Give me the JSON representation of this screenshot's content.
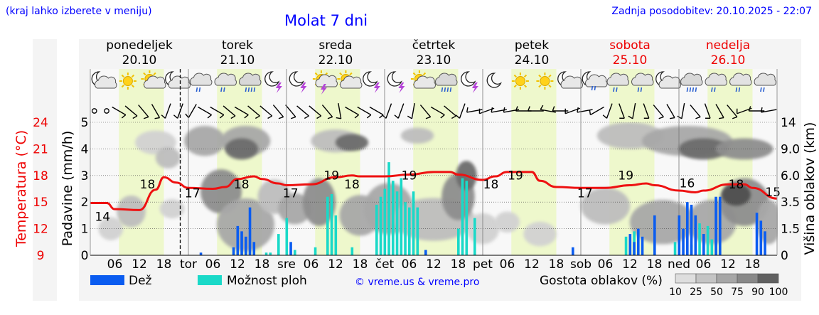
{
  "header": {
    "hint": "(kraj lahko izberete v meniju)",
    "title": "Molat 7 dni",
    "updated": "Zadnja posodobitev: 20.10.2025 - 22:07"
  },
  "days": [
    {
      "name": "ponedeljek",
      "date": "20.10",
      "weekend": false,
      "short": ""
    },
    {
      "name": "torek",
      "date": "21.10",
      "weekend": false,
      "short": "tor"
    },
    {
      "name": "sreda",
      "date": "22.10",
      "weekend": false,
      "short": "sre"
    },
    {
      "name": "četrtek",
      "date": "23.10",
      "weekend": false,
      "short": "čet"
    },
    {
      "name": "petek",
      "date": "24.10",
      "weekend": false,
      "short": "pet"
    },
    {
      "name": "sobota",
      "date": "25.10",
      "weekend": true,
      "short": "sob"
    },
    {
      "name": "nedelja",
      "date": "26.10",
      "weekend": true,
      "short": "ned"
    }
  ],
  "legend": {
    "rain": "Dež",
    "showers": "Možnost ploh",
    "credit": "© vreme.us & vreme.pro",
    "cloud_density": "Gostota oblakov (%)",
    "cloud_levels": [
      "10",
      "25",
      "50",
      "75",
      "90",
      "100"
    ]
  },
  "colors": {
    "rain": "#0a5cf0",
    "showers": "#1ad9c8",
    "temperature": "#ee1111",
    "daytime": "#eef8cc",
    "blue_text": "#0000ff",
    "red_text": "#ee0000"
  },
  "weather_icons": [
    "moon-cloud",
    "sun",
    "sun-cloud",
    "moon-cloud",
    "cloud-rain",
    "cloud-rain",
    "cloud-heavy-rain",
    "moon-storm",
    "moon-storm",
    "sun-storm",
    "sun-cloud",
    "moon-storm",
    "moon-storm",
    "sun-cloud",
    "cloud-heavy-rain",
    "moon-storm",
    "moon",
    "sun",
    "sun",
    "moon-cloud",
    "moon-cloud-rain",
    "cloud-rain",
    "cloud-rain",
    "moon-cloud",
    "cloud-heavy-rain",
    "cloud-rain",
    "cloud-rain",
    "cloud-rain"
  ],
  "chart_data": {
    "type": "meteogram",
    "x_hour_labels": [
      "06",
      "12",
      "18"
    ],
    "y_left_precip": {
      "label": "Padavine (mm/h)",
      "ticks": [
        "0",
        "1",
        "2",
        "3",
        "4",
        "5"
      ],
      "range": [
        0,
        5
      ]
    },
    "y_left_temp": {
      "label": "Temperatura (°C)",
      "ticks": [
        "9",
        "12",
        "15",
        "18",
        "21",
        "24"
      ],
      "range": [
        9,
        24
      ]
    },
    "y_right_cloud": {
      "label": "Višina oblakov (km)",
      "ticks": [
        "0",
        "1.5",
        "3.5",
        "6.0",
        "9.0",
        "14"
      ]
    },
    "temperature": {
      "hours": [
        0,
        4,
        6,
        12,
        16,
        18,
        21,
        24,
        30,
        33,
        36,
        40,
        42,
        46,
        48,
        54,
        60,
        64,
        66,
        72,
        78,
        84,
        88,
        90,
        96,
        99,
        102,
        108,
        110,
        114,
        120,
        126,
        132,
        136,
        138,
        144,
        148,
        150,
        156,
        160,
        162,
        168
      ],
      "values": [
        14.9,
        14.9,
        14.2,
        14.1,
        16.4,
        17.8,
        17.2,
        16.6,
        16.5,
        16.7,
        17.6,
        17.9,
        17.6,
        17.1,
        16.9,
        17.0,
        17.8,
        18.0,
        17.9,
        17.9,
        18.1,
        18.4,
        18.4,
        18.1,
        17.5,
        17.9,
        18.4,
        18.4,
        17.4,
        16.7,
        16.6,
        16.6,
        16.9,
        17.1,
        16.9,
        16.3,
        16.1,
        16.3,
        17.0,
        17.0,
        16.6,
        15.4
      ]
    },
    "temp_labels": [
      {
        "hour": 3,
        "text": "14"
      },
      {
        "hour": 14,
        "text": "18"
      },
      {
        "hour": 25,
        "text": "17"
      },
      {
        "hour": 37,
        "text": "18"
      },
      {
        "hour": 49,
        "text": "17"
      },
      {
        "hour": 59,
        "text": "19"
      },
      {
        "hour": 64,
        "text": "18"
      },
      {
        "hour": 78,
        "text": "19"
      },
      {
        "hour": 98,
        "text": "18"
      },
      {
        "hour": 104,
        "text": "19"
      },
      {
        "hour": 121,
        "text": "17"
      },
      {
        "hour": 131,
        "text": "19"
      },
      {
        "hour": 146,
        "text": "16"
      },
      {
        "hour": 158,
        "text": "18"
      },
      {
        "hour": 167,
        "text": "15"
      }
    ],
    "rain": [
      {
        "hour": 27,
        "value": 0.1
      },
      {
        "hour": 35,
        "value": 0.3
      },
      {
        "hour": 36,
        "value": 1.1
      },
      {
        "hour": 37,
        "value": 0.9
      },
      {
        "hour": 38,
        "value": 0.7
      },
      {
        "hour": 39,
        "value": 1.8
      },
      {
        "hour": 40,
        "value": 0.5
      },
      {
        "hour": 49,
        "value": 0.5
      },
      {
        "hour": 82,
        "value": 0.2
      },
      {
        "hour": 118,
        "value": 0.3
      },
      {
        "hour": 132,
        "value": 0.8
      },
      {
        "hour": 133,
        "value": 0.5
      },
      {
        "hour": 134,
        "value": 1.0
      },
      {
        "hour": 135,
        "value": 0.7
      },
      {
        "hour": 138,
        "value": 1.5
      },
      {
        "hour": 144,
        "value": 1.5
      },
      {
        "hour": 145,
        "value": 1.0
      },
      {
        "hour": 146,
        "value": 2.0
      },
      {
        "hour": 147,
        "value": 1.9
      },
      {
        "hour": 148,
        "value": 1.5
      },
      {
        "hour": 150,
        "value": 0.8
      },
      {
        "hour": 153,
        "value": 2.2
      },
      {
        "hour": 154,
        "value": 2.2
      },
      {
        "hour": 163,
        "value": 1.6
      },
      {
        "hour": 164,
        "value": 1.3
      },
      {
        "hour": 165,
        "value": 0.9
      }
    ],
    "showers": [
      {
        "hour": 43,
        "value": 0.1
      },
      {
        "hour": 44,
        "value": 0.1
      },
      {
        "hour": 46,
        "value": 0.8
      },
      {
        "hour": 48,
        "value": 1.4
      },
      {
        "hour": 50,
        "value": 0.2
      },
      {
        "hour": 55,
        "value": 0.3
      },
      {
        "hour": 58,
        "value": 2.2
      },
      {
        "hour": 59,
        "value": 2.3
      },
      {
        "hour": 60,
        "value": 1.5
      },
      {
        "hour": 64,
        "value": 0.3
      },
      {
        "hour": 70,
        "value": 1.9
      },
      {
        "hour": 71,
        "value": 2.2
      },
      {
        "hour": 72,
        "value": 2.5
      },
      {
        "hour": 73,
        "value": 3.5
      },
      {
        "hour": 74,
        "value": 2.8
      },
      {
        "hour": 75,
        "value": 2.4
      },
      {
        "hour": 76,
        "value": 2.9
      },
      {
        "hour": 77,
        "value": 2.0
      },
      {
        "hour": 78,
        "value": 1.8
      },
      {
        "hour": 79,
        "value": 2.4
      },
      {
        "hour": 80,
        "value": 1.8
      },
      {
        "hour": 90,
        "value": 1.0
      },
      {
        "hour": 91,
        "value": 2.9
      },
      {
        "hour": 92,
        "value": 2.8
      },
      {
        "hour": 94,
        "value": 1.4
      },
      {
        "hour": 131,
        "value": 0.7
      },
      {
        "hour": 133,
        "value": 0.9
      },
      {
        "hour": 143,
        "value": 0.5
      },
      {
        "hour": 147,
        "value": 0.4
      },
      {
        "hour": 148,
        "value": 0.6
      },
      {
        "hour": 149,
        "value": 1.2
      },
      {
        "hour": 150,
        "value": 0.8
      },
      {
        "hour": 151,
        "value": 1.1
      },
      {
        "hour": 152,
        "value": 0.6
      }
    ],
    "cloud_blobs": [
      {
        "hour": 5,
        "km": 1.5,
        "w": 4,
        "h": 1.5,
        "level": 1
      },
      {
        "hour": 10,
        "km": 2.8,
        "w": 5,
        "h": 2.5,
        "level": 2
      },
      {
        "hour": 16,
        "km": 10.2,
        "w": 8,
        "h": 4,
        "level": 1
      },
      {
        "hour": 19,
        "km": 8.0,
        "w": 4,
        "h": 2.5,
        "level": 2
      },
      {
        "hour": 20,
        "km": 3.0,
        "w": 4,
        "h": 1.5,
        "level": 1
      },
      {
        "hour": 28,
        "km": 10.5,
        "w": 8,
        "h": 5,
        "level": 3
      },
      {
        "hour": 32,
        "km": 4.5,
        "w": 8,
        "h": 4,
        "level": 4
      },
      {
        "hour": 38,
        "km": 10.5,
        "w": 10,
        "h": 5,
        "level": 3
      },
      {
        "hour": 37,
        "km": 9.0,
        "w": 6,
        "h": 3,
        "level": 5
      },
      {
        "hour": 38,
        "km": 1.8,
        "w": 12,
        "h": 3.5,
        "level": 3
      },
      {
        "hour": 45,
        "km": 4.0,
        "w": 6,
        "h": 3,
        "level": 2
      },
      {
        "hour": 50,
        "km": 3.0,
        "w": 6,
        "h": 2.5,
        "level": 3
      },
      {
        "hour": 56,
        "km": 3.5,
        "w": 6,
        "h": 4,
        "level": 4
      },
      {
        "hour": 60,
        "km": 10.5,
        "w": 10,
        "h": 4,
        "level": 2
      },
      {
        "hour": 64,
        "km": 10.2,
        "w": 6,
        "h": 3,
        "level": 5
      },
      {
        "hour": 66,
        "km": 2.5,
        "w": 8,
        "h": 3,
        "level": 3
      },
      {
        "hour": 73,
        "km": 3.0,
        "w": 10,
        "h": 4,
        "level": 3
      },
      {
        "hour": 80,
        "km": 11.5,
        "w": 6,
        "h": 3,
        "level": 2
      },
      {
        "hour": 84,
        "km": 2.2,
        "w": 18,
        "h": 3,
        "level": 2
      },
      {
        "hour": 90,
        "km": 4.0,
        "w": 6,
        "h": 4,
        "level": 4
      },
      {
        "hour": 92,
        "km": 6.0,
        "w": 3,
        "h": 3,
        "level": 5
      },
      {
        "hour": 96,
        "km": 1.5,
        "w": 6,
        "h": 2,
        "level": 1
      },
      {
        "hour": 102,
        "km": 2.0,
        "w": 4,
        "h": 1.5,
        "level": 1
      },
      {
        "hour": 110,
        "km": 1.2,
        "w": 6,
        "h": 1.5,
        "level": 1
      },
      {
        "hour": 126,
        "km": 3.2,
        "w": 10,
        "h": 3,
        "level": 2
      },
      {
        "hour": 132,
        "km": 11.5,
        "w": 14,
        "h": 5,
        "level": 2
      },
      {
        "hour": 140,
        "km": 2.0,
        "w": 14,
        "h": 3,
        "level": 3
      },
      {
        "hour": 146,
        "km": 10.5,
        "w": 20,
        "h": 5,
        "level": 3
      },
      {
        "hour": 150,
        "km": 9.0,
        "w": 10,
        "h": 3,
        "level": 5
      },
      {
        "hour": 160,
        "km": 9.0,
        "w": 12,
        "h": 3,
        "level": 4
      },
      {
        "hour": 152,
        "km": 2.0,
        "w": 10,
        "h": 3,
        "level": 3
      },
      {
        "hour": 160,
        "km": 3.5,
        "w": 10,
        "h": 4,
        "level": 4
      },
      {
        "hour": 158,
        "km": 4.2,
        "w": 5,
        "h": 2,
        "level": 6
      },
      {
        "hour": 166,
        "km": 2.0,
        "w": 4,
        "h": 3,
        "level": 3
      }
    ],
    "wind": [
      {
        "hour": 1,
        "speed": 0,
        "dir": 0
      },
      {
        "hour": 4,
        "speed": 0,
        "dir": 0
      },
      {
        "hour": 7,
        "speed": 2,
        "dir": 300
      },
      {
        "hour": 10,
        "speed": 2,
        "dir": 310
      },
      {
        "hour": 13,
        "speed": 2,
        "dir": 320
      },
      {
        "hour": 16,
        "speed": 2,
        "dir": 330
      },
      {
        "hour": 19,
        "speed": 2,
        "dir": 20
      },
      {
        "hour": 22,
        "speed": 2,
        "dir": 20
      },
      {
        "hour": 25,
        "speed": 2,
        "dir": 30
      },
      {
        "hour": 28,
        "speed": 2,
        "dir": 300
      },
      {
        "hour": 31,
        "speed": 2,
        "dir": 300
      },
      {
        "hour": 34,
        "speed": 2,
        "dir": 310
      },
      {
        "hour": 37,
        "speed": 2,
        "dir": 300
      },
      {
        "hour": 40,
        "speed": 2,
        "dir": 310
      },
      {
        "hour": 43,
        "speed": 2,
        "dir": 310
      },
      {
        "hour": 46,
        "speed": 2,
        "dir": 320
      },
      {
        "hour": 49,
        "speed": 2,
        "dir": 320
      },
      {
        "hour": 52,
        "speed": 2,
        "dir": 310
      },
      {
        "hour": 55,
        "speed": 2,
        "dir": 310
      },
      {
        "hour": 58,
        "speed": 2,
        "dir": 320
      },
      {
        "hour": 61,
        "speed": 2,
        "dir": 350
      },
      {
        "hour": 64,
        "speed": 2,
        "dir": 300
      },
      {
        "hour": 67,
        "speed": 2,
        "dir": 300
      },
      {
        "hour": 70,
        "speed": 2,
        "dir": 300
      },
      {
        "hour": 73,
        "speed": 2,
        "dir": 20
      },
      {
        "hour": 76,
        "speed": 2,
        "dir": 20
      },
      {
        "hour": 79,
        "speed": 2,
        "dir": 10
      },
      {
        "hour": 82,
        "speed": 2,
        "dir": 320
      },
      {
        "hour": 85,
        "speed": 2,
        "dir": 300
      },
      {
        "hour": 88,
        "speed": 2,
        "dir": 310
      },
      {
        "hour": 91,
        "speed": 2,
        "dir": 20
      },
      {
        "hour": 94,
        "speed": 2,
        "dir": 80
      },
      {
        "hour": 97,
        "speed": 2,
        "dir": 70
      },
      {
        "hour": 100,
        "speed": 2,
        "dir": 80
      },
      {
        "hour": 103,
        "speed": 2,
        "dir": 80
      },
      {
        "hour": 106,
        "speed": 2,
        "dir": 90
      },
      {
        "hour": 109,
        "speed": 2,
        "dir": 90
      },
      {
        "hour": 112,
        "speed": 2,
        "dir": 100
      },
      {
        "hour": 115,
        "speed": 2,
        "dir": 90
      },
      {
        "hour": 118,
        "speed": 2,
        "dir": 70
      },
      {
        "hour": 121,
        "speed": 2,
        "dir": 80
      },
      {
        "hour": 124,
        "speed": 2,
        "dir": 60
      },
      {
        "hour": 127,
        "speed": 2,
        "dir": 20
      },
      {
        "hour": 130,
        "speed": 2,
        "dir": 340
      },
      {
        "hour": 133,
        "speed": 2,
        "dir": 10
      },
      {
        "hour": 136,
        "speed": 2,
        "dir": 340
      },
      {
        "hour": 139,
        "speed": 2,
        "dir": 320
      },
      {
        "hour": 142,
        "speed": 2,
        "dir": 330
      },
      {
        "hour": 145,
        "speed": 2,
        "dir": 10
      },
      {
        "hour": 148,
        "speed": 2,
        "dir": 320
      },
      {
        "hour": 151,
        "speed": 2,
        "dir": 340
      },
      {
        "hour": 154,
        "speed": 2,
        "dir": 330
      },
      {
        "hour": 157,
        "speed": 2,
        "dir": 320
      },
      {
        "hour": 160,
        "speed": 2,
        "dir": 70
      },
      {
        "hour": 163,
        "speed": 2,
        "dir": 90
      },
      {
        "hour": 166,
        "speed": 2,
        "dir": 80
      }
    ]
  }
}
